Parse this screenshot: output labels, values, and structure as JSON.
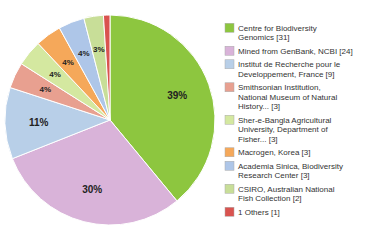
{
  "chart_data": {
    "type": "pie",
    "categories": [
      "Centre for Biodiversity\nGenomics [31]",
      "Mined from GenBank, NCBI [24]",
      "Institut de Recherche pour le\nDeveloppement, France [9]",
      "Smithsonian Institution,\nNational Museum of Natural\nHistory... [3]",
      "Sher-e-Bangla Agricultural\nUniversity, Department of\nFisher... [3]",
      "Macrogen, Korea [3]",
      "Academia Sinica, Biodiversity\nResearch Center [3]",
      "CSIRO, Australian National\nFish Collection [2]",
      "1 Others [1]"
    ],
    "values": [
      39,
      30,
      11,
      4,
      4,
      4,
      4,
      3,
      1
    ],
    "value_labels": [
      "39%",
      "30%",
      "11%",
      "4%",
      "4%",
      "4%",
      "4%",
      "3%",
      null
    ],
    "colors": [
      "#8dc63f",
      "#d9b3d9",
      "#b8cfe8",
      "#e8a090",
      "#d4e8a0",
      "#f5a85a",
      "#aec6e8",
      "#c8de98",
      "#d9534f"
    ],
    "data_labels": true,
    "legend": "right"
  }
}
